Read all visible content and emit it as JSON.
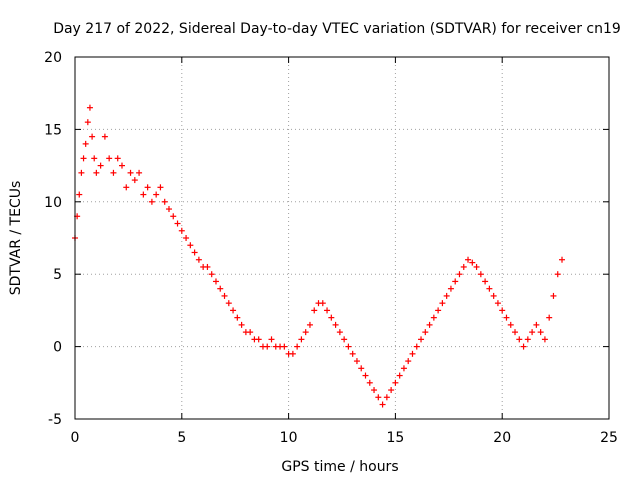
{
  "chart_data": {
    "type": "scatter",
    "title": "Day 217 of 2022, Sidereal Day-to-day VTEC variation (SDTVAR) for receiver cn19",
    "xlabel": "GPS time / hours",
    "ylabel": "SDTVAR / TECUs",
    "xlim": [
      0,
      25
    ],
    "ylim": [
      -5,
      20
    ],
    "x_ticks": [
      0,
      5,
      10,
      15,
      20,
      25
    ],
    "x_tick_labels": [
      "0",
      "5",
      "10",
      "15",
      "20",
      "25"
    ],
    "y_ticks": [
      -5,
      0,
      5,
      10,
      15,
      20
    ],
    "y_tick_labels": [
      "-5",
      "0",
      "5",
      "10",
      "15",
      "20"
    ],
    "grid": true,
    "marker": "+",
    "series": [
      {
        "name": "SDTVAR",
        "color": "#ff0000",
        "x": [
          0.0,
          0.1,
          0.2,
          0.3,
          0.4,
          0.5,
          0.6,
          0.7,
          0.8,
          0.9,
          1.0,
          1.2,
          1.4,
          1.6,
          1.8,
          2.0,
          2.2,
          2.4,
          2.6,
          2.8,
          3.0,
          3.2,
          3.4,
          3.6,
          3.8,
          4.0,
          4.2,
          4.4,
          4.6,
          4.8,
          5.0,
          5.2,
          5.4,
          5.6,
          5.8,
          6.0,
          6.2,
          6.4,
          6.6,
          6.8,
          7.0,
          7.2,
          7.4,
          7.6,
          7.8,
          8.0,
          8.2,
          8.4,
          8.6,
          8.8,
          9.0,
          9.2,
          9.4,
          9.6,
          9.8,
          10.0,
          10.2,
          10.4,
          10.6,
          10.8,
          11.0,
          11.2,
          11.4,
          11.6,
          11.8,
          12.0,
          12.2,
          12.4,
          12.6,
          12.8,
          13.0,
          13.2,
          13.4,
          13.6,
          13.8,
          14.0,
          14.2,
          14.4,
          14.6,
          14.8,
          15.0,
          15.2,
          15.4,
          15.6,
          15.8,
          16.0,
          16.2,
          16.4,
          16.6,
          16.8,
          17.0,
          17.2,
          17.4,
          17.6,
          17.8,
          18.0,
          18.2,
          18.4,
          18.6,
          18.8,
          19.0,
          19.2,
          19.4,
          19.6,
          19.8,
          20.0,
          20.2,
          20.4,
          20.6,
          20.8,
          21.0,
          21.2,
          21.4,
          21.6,
          21.8,
          22.0,
          22.2,
          22.4,
          22.6,
          22.8
        ],
        "y": [
          7.5,
          9.0,
          10.5,
          12.0,
          13.0,
          14.0,
          15.5,
          16.5,
          14.5,
          13.0,
          12.0,
          12.5,
          14.5,
          13.0,
          12.0,
          13.0,
          12.5,
          11.0,
          12.0,
          11.5,
          12.0,
          10.5,
          11.0,
          10.0,
          10.5,
          11.0,
          10.0,
          9.5,
          9.0,
          8.5,
          8.0,
          7.5,
          7.0,
          6.5,
          6.0,
          5.5,
          5.5,
          5.0,
          4.5,
          4.0,
          3.5,
          3.0,
          2.5,
          2.0,
          1.5,
          1.0,
          1.0,
          0.5,
          0.5,
          0.0,
          0.0,
          0.5,
          0.0,
          0.0,
          0.0,
          -0.5,
          -0.5,
          0.0,
          0.5,
          1.0,
          1.5,
          2.5,
          3.0,
          3.0,
          2.5,
          2.0,
          1.5,
          1.0,
          0.5,
          0.0,
          -0.5,
          -1.0,
          -1.5,
          -2.0,
          -2.5,
          -3.0,
          -3.5,
          -4.0,
          -3.5,
          -3.0,
          -2.5,
          -2.0,
          -1.5,
          -1.0,
          -0.5,
          0.0,
          0.5,
          1.0,
          1.5,
          2.0,
          2.5,
          3.0,
          3.5,
          4.0,
          4.5,
          5.0,
          5.5,
          6.0,
          5.8,
          5.5,
          5.0,
          4.5,
          4.0,
          3.5,
          3.0,
          2.5,
          2.0,
          1.5,
          1.0,
          0.5,
          0.0,
          0.5,
          1.0,
          1.5,
          1.0,
          0.5,
          2.0,
          3.5,
          5.0,
          6.0
        ]
      }
    ]
  }
}
